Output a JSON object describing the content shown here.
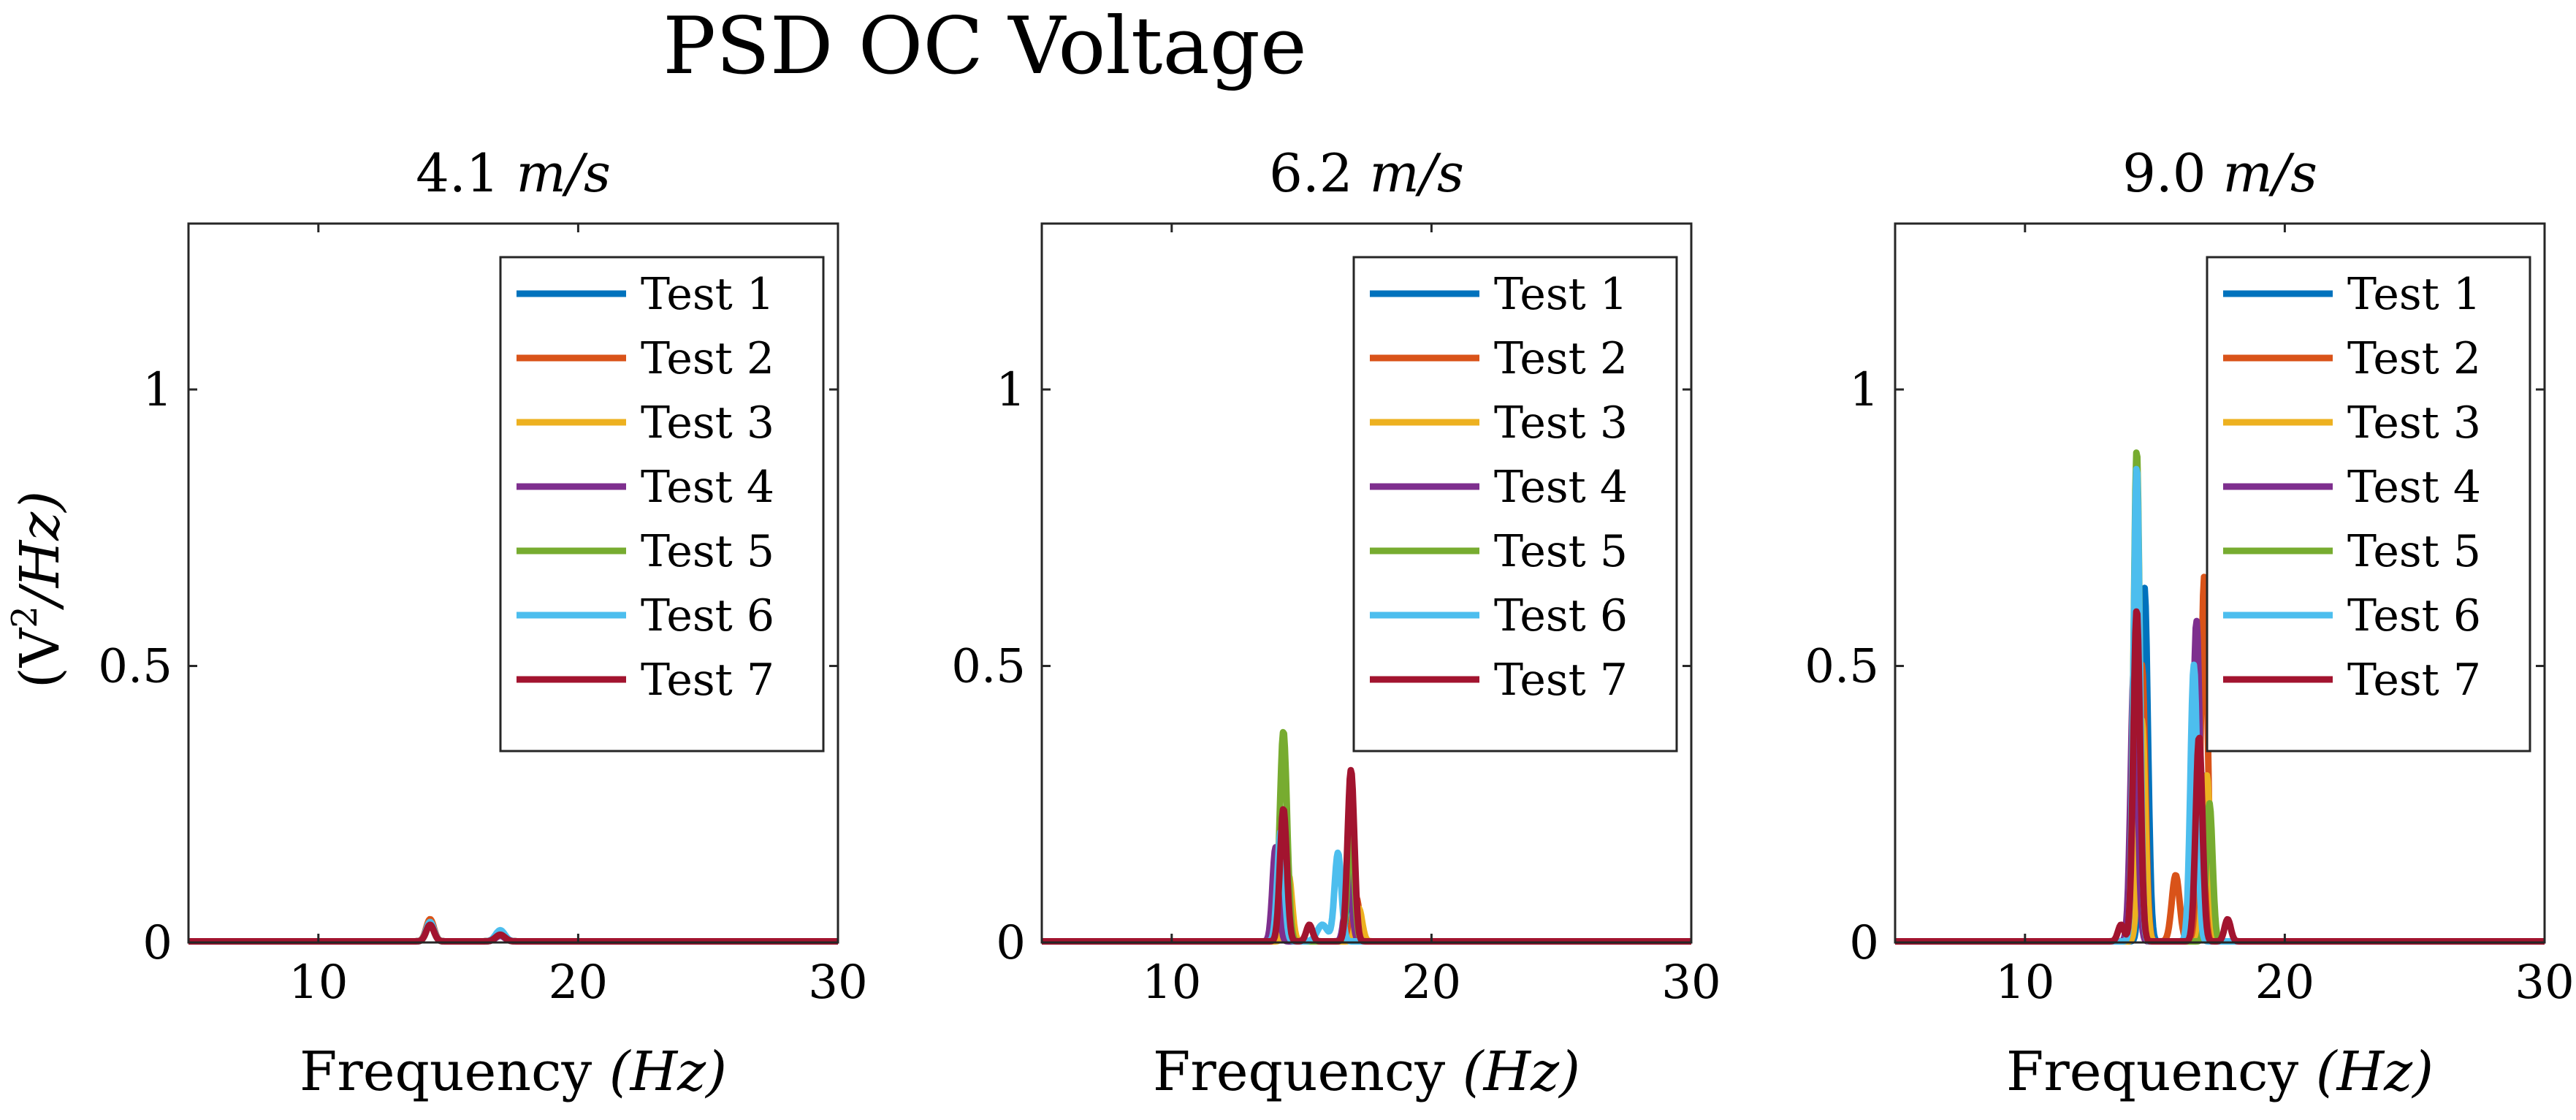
{
  "figure": {
    "title": "PSD OC Voltage",
    "ylabel_main": "(V",
    "ylabel_sup": "2",
    "ylabel_rest": "/Hz)"
  },
  "legend_entries": [
    "Test 1",
    "Test 2",
    "Test 3",
    "Test 4",
    "Test 5",
    "Test 6",
    "Test 7"
  ],
  "series_colors": [
    "#0072BD",
    "#D95319",
    "#EDB120",
    "#7E2F8E",
    "#77AC30",
    "#4DBEEE",
    "#A2142F"
  ],
  "chart_data": [
    {
      "type": "line",
      "title": "4.1 m/s",
      "title_num": "4.1",
      "title_unit": "m/s",
      "xlabel": "Frequency (Hz)",
      "xlabel_word": "Frequency",
      "xlabel_unit": "(Hz)",
      "ylabel": "(V^2/Hz)",
      "xlim": [
        5,
        30
      ],
      "ylim": [
        0,
        1.3
      ],
      "xticks": [
        10,
        20,
        30
      ],
      "xtick_labels": [
        "10",
        "20",
        "30"
      ],
      "yticks": [
        0,
        0.5,
        1
      ],
      "ytick_labels": [
        "0",
        "0.5",
        "1"
      ],
      "legend": "top-right",
      "grid": false,
      "series": [
        {
          "name": "Test 1",
          "peaks": [
            [
              14.3,
              0.03,
              0.15
            ],
            [
              17.0,
              0.015,
              0.18
            ]
          ]
        },
        {
          "name": "Test 2",
          "peaks": [
            [
              14.3,
              0.04,
              0.15
            ],
            [
              17.0,
              0.01,
              0.18
            ]
          ]
        },
        {
          "name": "Test 3",
          "peaks": [
            [
              14.3,
              0.035,
              0.15
            ],
            [
              17.0,
              0.015,
              0.18
            ]
          ]
        },
        {
          "name": "Test 4",
          "peaks": [
            [
              14.3,
              0.03,
              0.15
            ],
            [
              17.0,
              0.01,
              0.18
            ]
          ]
        },
        {
          "name": "Test 5",
          "peaks": [
            [
              14.3,
              0.03,
              0.15
            ],
            [
              17.0,
              0.015,
              0.18
            ]
          ]
        },
        {
          "name": "Test 6",
          "peaks": [
            [
              14.3,
              0.035,
              0.15
            ],
            [
              17.0,
              0.02,
              0.18
            ]
          ]
        },
        {
          "name": "Test 7",
          "peaks": [
            [
              14.3,
              0.03,
              0.15
            ],
            [
              17.0,
              0.012,
              0.18
            ]
          ]
        }
      ]
    },
    {
      "type": "line",
      "title": "6.2 m/s",
      "title_num": "6.2",
      "title_unit": "m/s",
      "xlabel": "Frequency (Hz)",
      "xlabel_word": "Frequency",
      "xlabel_unit": "(Hz)",
      "ylabel": "",
      "xlim": [
        5,
        30
      ],
      "ylim": [
        0,
        1.3
      ],
      "xticks": [
        10,
        20,
        30
      ],
      "xtick_labels": [
        "10",
        "20",
        "30"
      ],
      "yticks": [
        0,
        0.5,
        1
      ],
      "ytick_labels": [
        "0",
        "0.5",
        "1"
      ],
      "legend": "top-right",
      "grid": false,
      "series": [
        {
          "name": "Test 1",
          "peaks": [
            [
              14.3,
              0.2,
              0.13
            ],
            [
              16.9,
              0.15,
              0.13
            ]
          ]
        },
        {
          "name": "Test 2",
          "peaks": [
            [
              14.4,
              0.15,
              0.13
            ],
            [
              17.1,
              0.08,
              0.13
            ]
          ]
        },
        {
          "name": "Test 3",
          "peaks": [
            [
              14.5,
              0.12,
              0.13
            ],
            [
              17.2,
              0.06,
              0.13
            ]
          ]
        },
        {
          "name": "Test 4",
          "peaks": [
            [
              14.0,
              0.17,
              0.12
            ],
            [
              16.8,
              0.12,
              0.13
            ]
          ]
        },
        {
          "name": "Test 5",
          "peaks": [
            [
              14.3,
              0.38,
              0.14
            ],
            [
              16.9,
              0.2,
              0.13
            ]
          ]
        },
        {
          "name": "Test 6",
          "peaks": [
            [
              14.2,
              0.2,
              0.13
            ],
            [
              16.4,
              0.16,
              0.13
            ],
            [
              15.8,
              0.03,
              0.2
            ]
          ]
        },
        {
          "name": "Test 7",
          "peaks": [
            [
              14.3,
              0.24,
              0.13
            ],
            [
              16.9,
              0.31,
              0.13
            ],
            [
              15.3,
              0.03,
              0.12
            ]
          ]
        }
      ]
    },
    {
      "type": "line",
      "title": "9.0 m/s",
      "title_num": "9.0",
      "title_unit": "m/s",
      "xlabel": "Frequency (Hz)",
      "xlabel_word": "Frequency",
      "xlabel_unit": "(Hz)",
      "ylabel": "",
      "xlim": [
        5,
        30
      ],
      "ylim": [
        0,
        1.3
      ],
      "xticks": [
        10,
        20,
        30
      ],
      "xtick_labels": [
        "10",
        "20",
        "30"
      ],
      "yticks": [
        0,
        0.5,
        1
      ],
      "ytick_labels": [
        "0",
        "0.5",
        "1"
      ],
      "legend": "top-right",
      "grid": false,
      "series": [
        {
          "name": "Test 1",
          "peaks": [
            [
              14.6,
              0.64,
              0.13
            ],
            [
              16.9,
              0.3,
              0.13
            ]
          ]
        },
        {
          "name": "Test 2",
          "peaks": [
            [
              14.5,
              0.5,
              0.13
            ],
            [
              15.8,
              0.12,
              0.15
            ],
            [
              16.9,
              0.66,
              0.13
            ]
          ]
        },
        {
          "name": "Test 3",
          "peaks": [
            [
              14.5,
              0.4,
              0.13
            ],
            [
              17.0,
              0.3,
              0.13
            ]
          ]
        },
        {
          "name": "Test 4",
          "peaks": [
            [
              14.2,
              0.5,
              0.13
            ],
            [
              16.6,
              0.58,
              0.13
            ]
          ]
        },
        {
          "name": "Test 5",
          "peaks": [
            [
              14.3,
              0.89,
              0.12
            ],
            [
              17.1,
              0.25,
              0.12
            ]
          ]
        },
        {
          "name": "Test 6",
          "peaks": [
            [
              14.3,
              0.86,
              0.12
            ],
            [
              16.5,
              0.5,
              0.13
            ]
          ]
        },
        {
          "name": "Test 7",
          "peaks": [
            [
              14.3,
              0.6,
              0.13
            ],
            [
              16.7,
              0.37,
              0.13
            ],
            [
              13.7,
              0.03,
              0.12
            ],
            [
              17.8,
              0.04,
              0.12
            ]
          ]
        }
      ]
    }
  ]
}
